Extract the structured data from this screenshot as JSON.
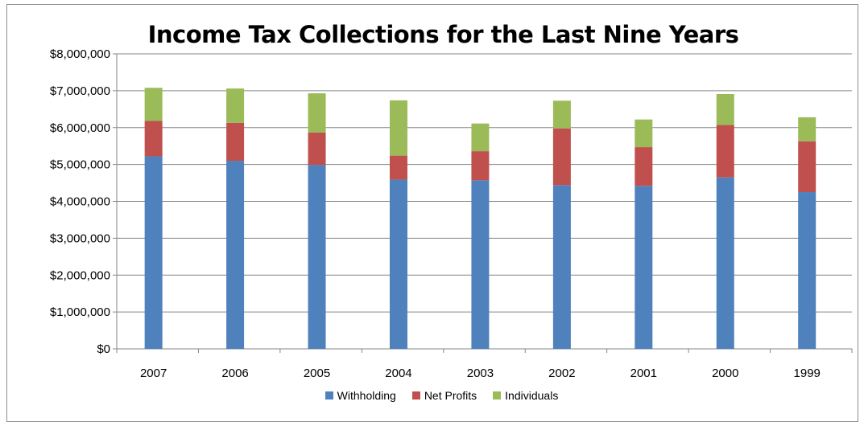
{
  "chart_data": {
    "type": "bar",
    "stacked": true,
    "title": "Income Tax Collections for the Last Nine Years",
    "categories": [
      "2007",
      "2006",
      "2005",
      "2004",
      "2003",
      "2002",
      "2001",
      "2000",
      "1999"
    ],
    "series": [
      {
        "name": "Withholding",
        "color": "#4f81bd",
        "values": [
          5220000,
          5100000,
          4990000,
          4590000,
          4570000,
          4440000,
          4420000,
          4650000,
          4250000
        ]
      },
      {
        "name": "Net Profits",
        "color": "#c0504d",
        "values": [
          960000,
          1030000,
          880000,
          650000,
          790000,
          1540000,
          1050000,
          1420000,
          1380000
        ]
      },
      {
        "name": "Individuals",
        "color": "#9bbb59",
        "values": [
          900000,
          930000,
          1060000,
          1500000,
          750000,
          750000,
          750000,
          840000,
          650000
        ]
      }
    ],
    "ylim": [
      0,
      8000000
    ],
    "yticks": [
      0,
      1000000,
      2000000,
      3000000,
      4000000,
      5000000,
      6000000,
      7000000,
      8000000
    ],
    "ytick_labels": [
      "$0",
      "$1,000,000",
      "$2,000,000",
      "$3,000,000",
      "$4,000,000",
      "$5,000,000",
      "$6,000,000",
      "$7,000,000",
      "$8,000,000"
    ],
    "grid": true,
    "legend_position": "bottom"
  }
}
